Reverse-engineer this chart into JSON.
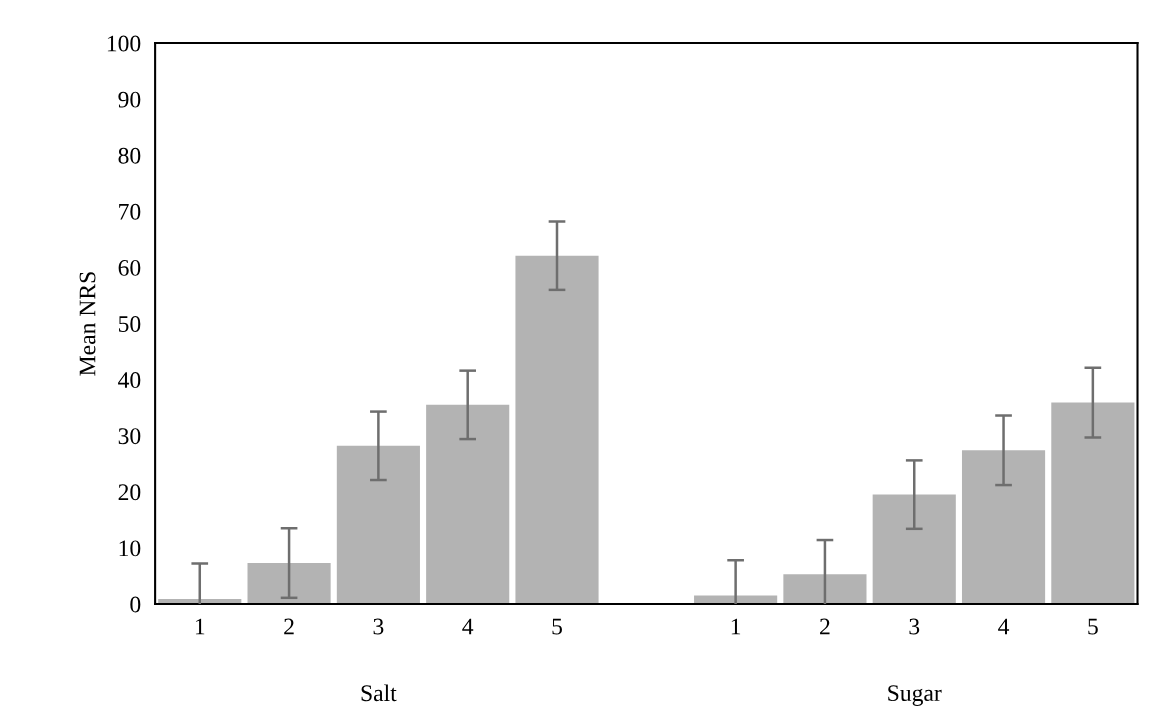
{
  "chart_data": {
    "type": "bar",
    "ylabel": "Mean NRS",
    "categories": [
      "1",
      "2",
      "3",
      "4",
      "5",
      null,
      "1",
      "2",
      "3",
      "4",
      "5"
    ],
    "values": [
      0.9,
      7.3,
      28.2,
      35.5,
      62.1,
      null,
      1.5,
      5.3,
      19.5,
      27.4,
      35.9
    ],
    "errors": [
      6.3,
      6.2,
      6.1,
      6.1,
      6.1,
      null,
      6.3,
      6.1,
      6.1,
      6.2,
      6.2
    ],
    "color": "#b3b3b3",
    "ylim": [
      0,
      100
    ],
    "yticks": [
      0,
      10,
      20,
      30,
      40,
      50,
      60,
      70,
      80,
      90,
      100
    ],
    "grid": false,
    "legend": false,
    "annotations": [
      "Salt",
      "Sugar"
    ]
  }
}
